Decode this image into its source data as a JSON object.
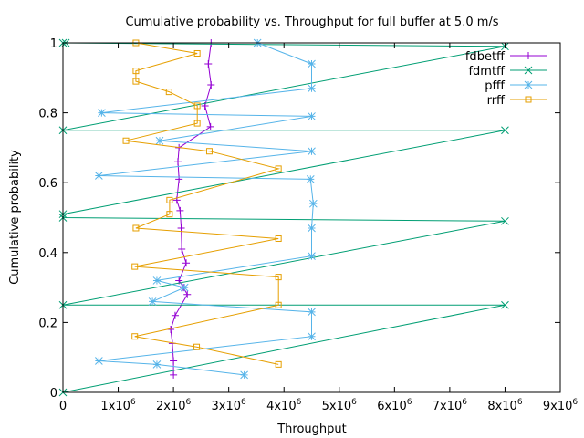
{
  "chart_data": {
    "type": "line",
    "title": "Cumulative probability vs. Throughput for full buffer at 5.0 m/s",
    "xlabel": "Throughput",
    "ylabel": "Cumulative probability",
    "xlim": [
      0,
      9000000
    ],
    "ylim": [
      0,
      1
    ],
    "x_ticks": [
      {
        "value": 0,
        "base": "0",
        "exp": ""
      },
      {
        "value": 1000000,
        "base": "1x10",
        "exp": "6"
      },
      {
        "value": 2000000,
        "base": "2x10",
        "exp": "6"
      },
      {
        "value": 3000000,
        "base": "3x10",
        "exp": "6"
      },
      {
        "value": 4000000,
        "base": "4x10",
        "exp": "6"
      },
      {
        "value": 5000000,
        "base": "5x10",
        "exp": "6"
      },
      {
        "value": 6000000,
        "base": "6x10",
        "exp": "6"
      },
      {
        "value": 7000000,
        "base": "7x10",
        "exp": "6"
      },
      {
        "value": 8000000,
        "base": "8x10",
        "exp": "6"
      },
      {
        "value": 9000000,
        "base": "9x10",
        "exp": "6"
      }
    ],
    "y_ticks": [
      {
        "value": 0,
        "label": "0"
      },
      {
        "value": 0.2,
        "label": "0.2"
      },
      {
        "value": 0.4,
        "label": "0.4"
      },
      {
        "value": 0.6,
        "label": "0.6"
      },
      {
        "value": 0.8,
        "label": "0.8"
      },
      {
        "value": 1,
        "label": "1"
      }
    ],
    "grid": false,
    "legend_position": "top-right",
    "series": [
      {
        "name": "fdbetff",
        "color": "#9400d3",
        "marker": "plus",
        "points": [
          [
            2000000,
            0.05
          ],
          [
            2000000,
            0.09
          ],
          [
            1980000,
            0.14
          ],
          [
            1950000,
            0.18
          ],
          [
            2030000,
            0.22
          ],
          [
            2250000,
            0.28
          ],
          [
            2180000,
            0.3
          ],
          [
            2100000,
            0.32
          ],
          [
            2230000,
            0.37
          ],
          [
            2150000,
            0.41
          ],
          [
            2140000,
            0.47
          ],
          [
            2120000,
            0.52
          ],
          [
            2060000,
            0.55
          ],
          [
            2100000,
            0.61
          ],
          [
            2080000,
            0.66
          ],
          [
            2100000,
            0.7
          ],
          [
            2670000,
            0.76
          ],
          [
            2570000,
            0.82
          ],
          [
            2680000,
            0.88
          ],
          [
            2630000,
            0.94
          ],
          [
            2680000,
            1.0
          ]
        ]
      },
      {
        "name": "fdmtff",
        "color": "#009e73",
        "marker": "x",
        "points": [
          [
            0,
            0.0
          ],
          [
            8000000,
            0.25
          ],
          [
            0,
            0.25
          ],
          [
            8000000,
            0.49
          ],
          [
            0,
            0.5
          ],
          [
            0,
            0.51
          ],
          [
            8000000,
            0.75
          ],
          [
            0,
            0.75
          ],
          [
            8000000,
            0.99
          ],
          [
            0,
            1.0
          ],
          [
            50000,
            1.0
          ]
        ]
      },
      {
        "name": "pfff",
        "color": "#56b4e9",
        "marker": "star",
        "points": [
          [
            3280000,
            0.05
          ],
          [
            1700000,
            0.08
          ],
          [
            650000,
            0.09
          ],
          [
            4500000,
            0.16
          ],
          [
            4500000,
            0.23
          ],
          [
            1620000,
            0.26
          ],
          [
            2200000,
            0.3
          ],
          [
            1700000,
            0.32
          ],
          [
            4500000,
            0.39
          ],
          [
            4500000,
            0.47
          ],
          [
            4530000,
            0.54
          ],
          [
            4480000,
            0.61
          ],
          [
            650000,
            0.62
          ],
          [
            4500000,
            0.69
          ],
          [
            1750000,
            0.72
          ],
          [
            4500000,
            0.79
          ],
          [
            700000,
            0.8
          ],
          [
            4500000,
            0.87
          ],
          [
            4500000,
            0.94
          ],
          [
            3520000,
            1.0
          ]
        ]
      },
      {
        "name": "rrff",
        "color": "#e69f00",
        "marker": "box",
        "points": [
          [
            3900000,
            0.08
          ],
          [
            2420000,
            0.13
          ],
          [
            1300000,
            0.16
          ],
          [
            3900000,
            0.25
          ],
          [
            3900000,
            0.33
          ],
          [
            1300000,
            0.36
          ],
          [
            3900000,
            0.44
          ],
          [
            1320000,
            0.47
          ],
          [
            1930000,
            0.51
          ],
          [
            1930000,
            0.55
          ],
          [
            3900000,
            0.64
          ],
          [
            2650000,
            0.69
          ],
          [
            1140000,
            0.72
          ],
          [
            2430000,
            0.77
          ],
          [
            2430000,
            0.82
          ],
          [
            1920000,
            0.86
          ],
          [
            1320000,
            0.89
          ],
          [
            1320000,
            0.92
          ],
          [
            2430000,
            0.97
          ],
          [
            1320000,
            1.0
          ]
        ]
      }
    ]
  }
}
